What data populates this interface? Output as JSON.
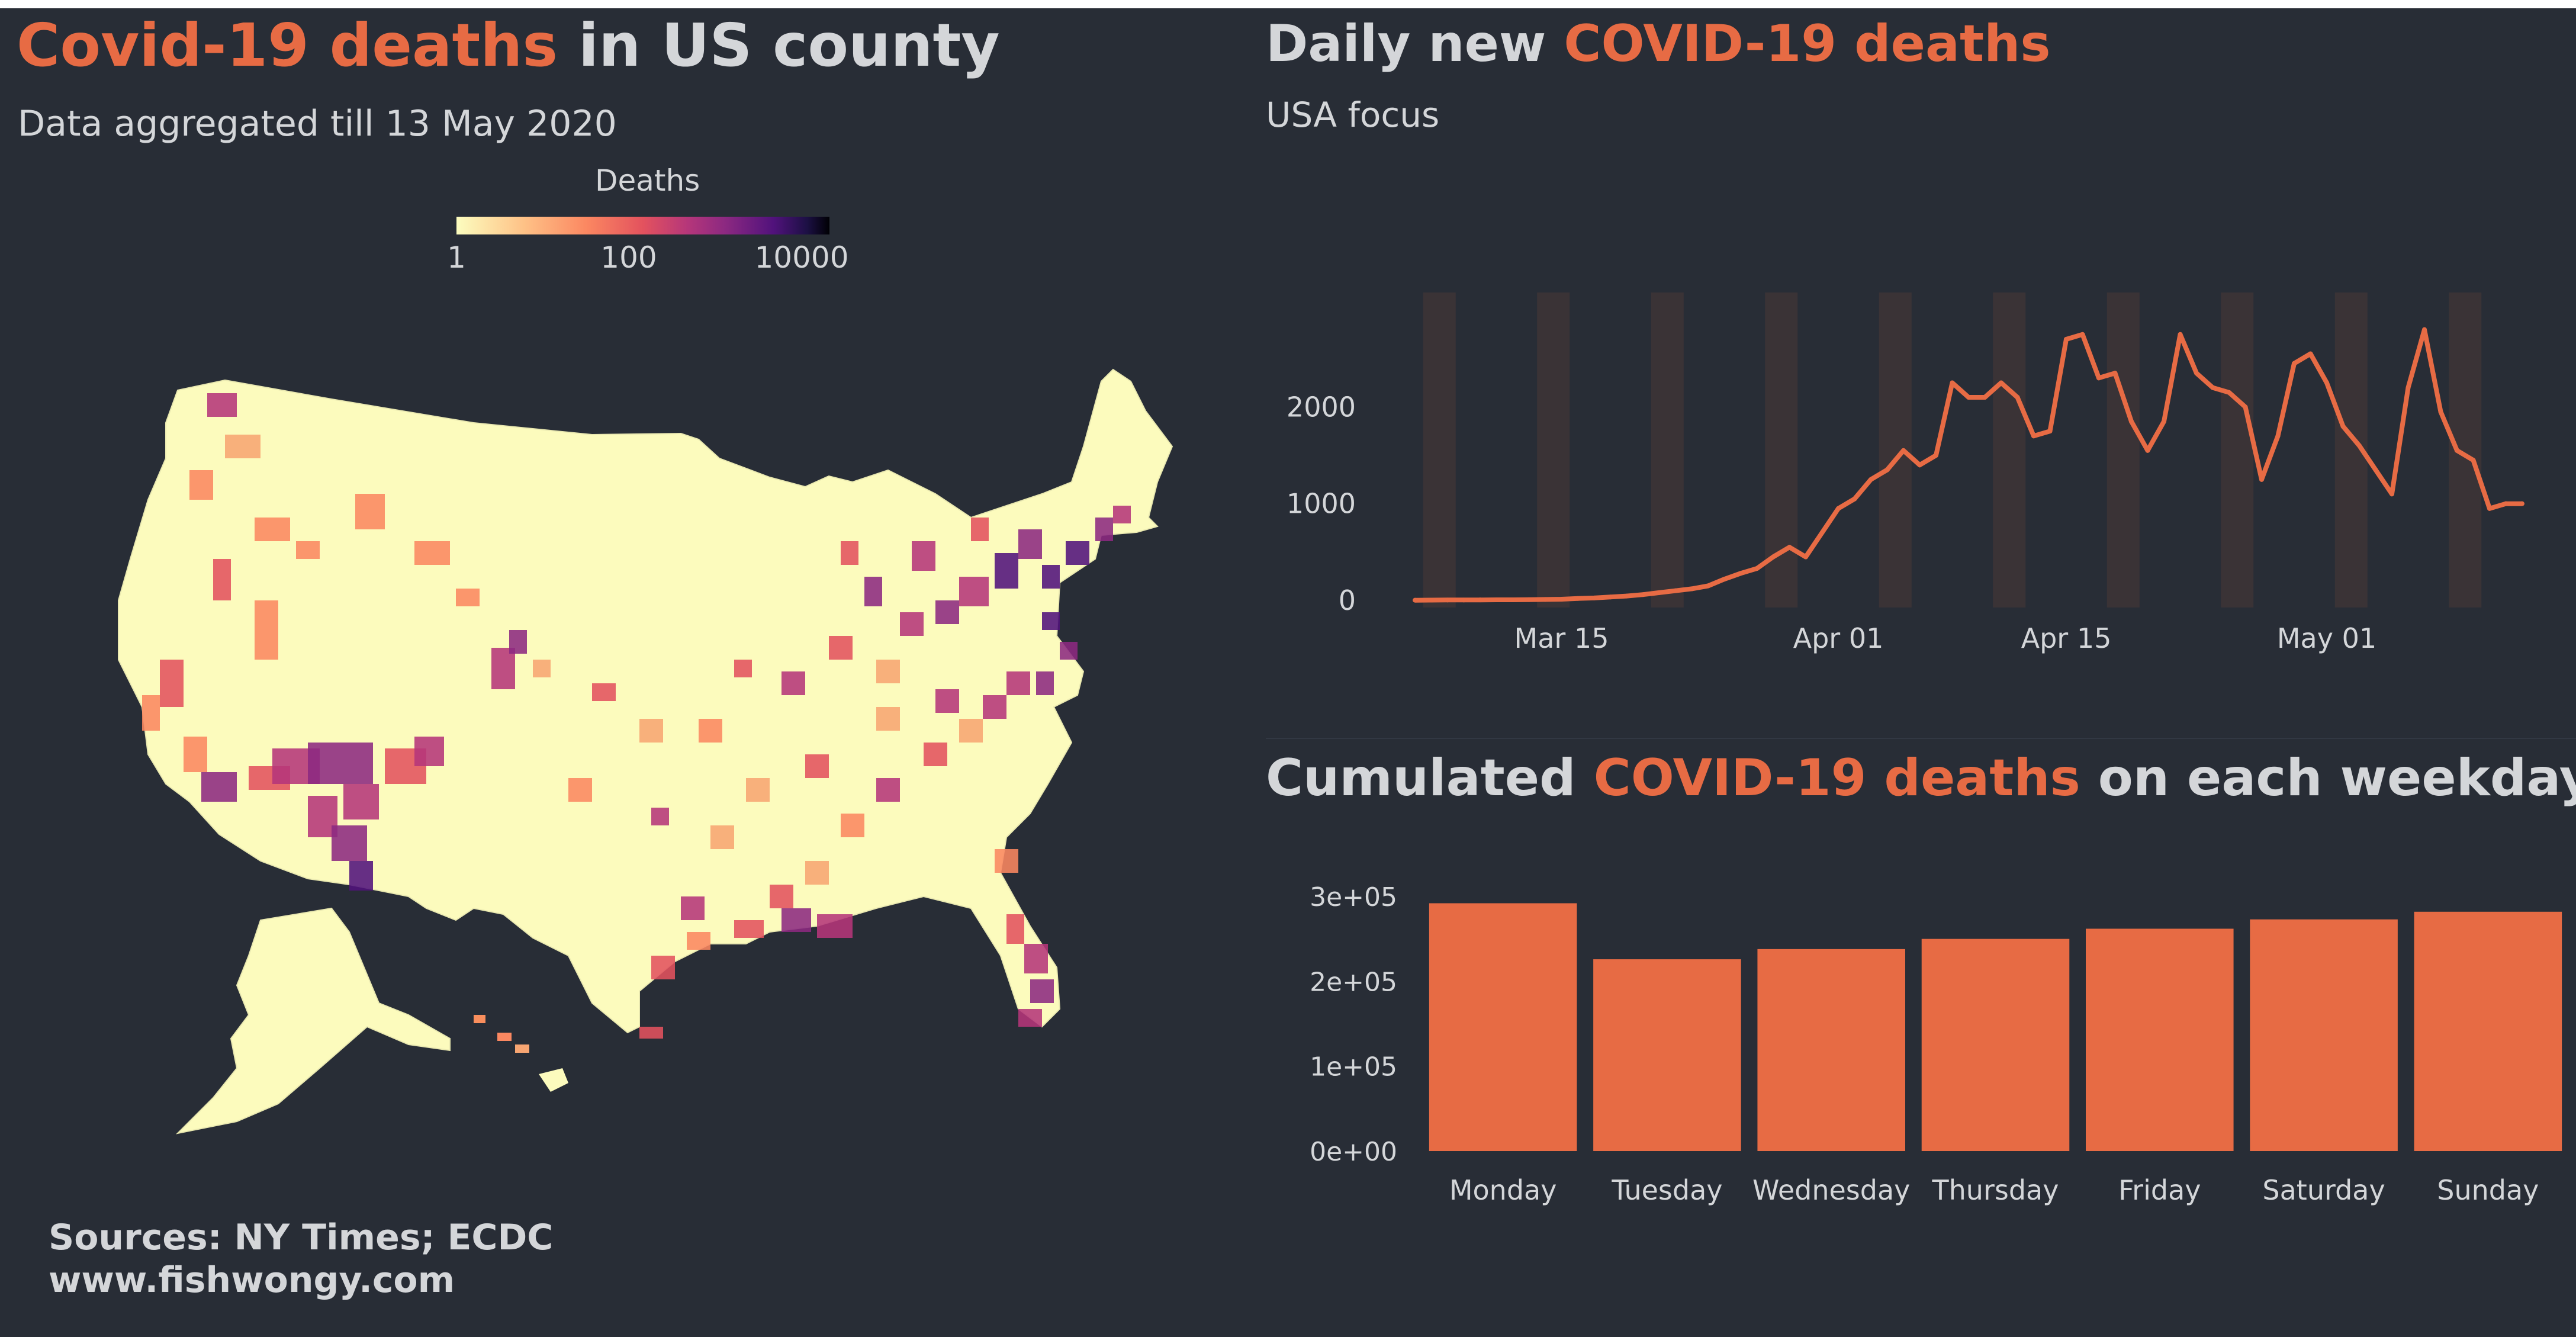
{
  "map_panel": {
    "title_part1": "Covid-19 deaths",
    "title_part2": " in US county",
    "subtitle": "Data aggregated till 13 May 2020",
    "legend": {
      "title": "Deaths",
      "ticks": [
        "1",
        "100",
        "10000"
      ]
    },
    "sources_line1": "Sources: NY Times; ECDC",
    "sources_line2": "www.fishwongy.com"
  },
  "daily_panel": {
    "title_part1": "Daily new ",
    "title_part2": "COVID-19 deaths",
    "subtitle": "USA focus"
  },
  "weekday_panel": {
    "title_part1": "Cumulated ",
    "title_part2": "COVID-19 deaths",
    "title_part3": " on each weekday"
  },
  "colors": {
    "background": "#282d36",
    "accent": "#e76b44",
    "text": "#d4d6d9",
    "weekend_band": "#3a3336"
  },
  "chart_data": [
    {
      "type": "line",
      "title": "Daily new COVID-19 deaths",
      "subtitle": "USA focus",
      "x_tick_labels": [
        "Mar 15",
        "Apr 01",
        "Apr 15",
        "May 01"
      ],
      "y_tick_labels": [
        "0",
        "1000",
        "2000"
      ],
      "ylim": [
        0,
        3000
      ],
      "grid": false,
      "weekend_bands": true,
      "x": [
        "2020-03-06",
        "2020-03-07",
        "2020-03-08",
        "2020-03-09",
        "2020-03-10",
        "2020-03-11",
        "2020-03-12",
        "2020-03-13",
        "2020-03-14",
        "2020-03-15",
        "2020-03-16",
        "2020-03-17",
        "2020-03-18",
        "2020-03-19",
        "2020-03-20",
        "2020-03-21",
        "2020-03-22",
        "2020-03-23",
        "2020-03-24",
        "2020-03-25",
        "2020-03-26",
        "2020-03-27",
        "2020-03-28",
        "2020-03-29",
        "2020-03-30",
        "2020-03-31",
        "2020-04-01",
        "2020-04-02",
        "2020-04-03",
        "2020-04-04",
        "2020-04-05",
        "2020-04-06",
        "2020-04-07",
        "2020-04-08",
        "2020-04-09",
        "2020-04-10",
        "2020-04-11",
        "2020-04-12",
        "2020-04-13",
        "2020-04-14",
        "2020-04-15",
        "2020-04-16",
        "2020-04-17",
        "2020-04-18",
        "2020-04-19",
        "2020-04-20",
        "2020-04-21",
        "2020-04-22",
        "2020-04-23",
        "2020-04-24",
        "2020-04-25",
        "2020-04-26",
        "2020-04-27",
        "2020-04-28",
        "2020-04-29",
        "2020-04-30",
        "2020-05-01",
        "2020-05-02",
        "2020-05-03",
        "2020-05-04",
        "2020-05-05",
        "2020-05-06",
        "2020-05-07",
        "2020-05-08",
        "2020-05-09",
        "2020-05-10",
        "2020-05-11",
        "2020-05-12",
        "2020-05-13"
      ],
      "values": [
        2,
        3,
        4,
        4,
        5,
        6,
        6,
        8,
        10,
        12,
        20,
        25,
        35,
        45,
        60,
        80,
        100,
        120,
        150,
        220,
        280,
        330,
        450,
        550,
        450,
        700,
        950,
        1050,
        1250,
        1350,
        1550,
        1400,
        1500,
        2250,
        2100,
        2100,
        2250,
        2100,
        1700,
        1750,
        2700,
        2750,
        2300,
        2350,
        1850,
        1550,
        1850,
        2750,
        2350,
        2200,
        2150,
        2000,
        1250,
        1700,
        2450,
        2550,
        2250,
        1800,
        1600,
        1350,
        1100,
        2200,
        2800,
        1950,
        1550,
        1450,
        950,
        1000,
        1000
      ]
    },
    {
      "type": "bar",
      "title": "Cumulated COVID-19 deaths on each weekday",
      "categories": [
        "Monday",
        "Tuesday",
        "Wednesday",
        "Thursday",
        "Friday",
        "Saturday",
        "Sunday"
      ],
      "values": [
        292000,
        226000,
        238000,
        250000,
        262000,
        273000,
        282000
      ],
      "y_tick_labels": [
        "0e+00",
        "1e+05",
        "2e+05",
        "3e+05"
      ],
      "ylim": [
        0,
        300000
      ],
      "grid": false
    }
  ]
}
